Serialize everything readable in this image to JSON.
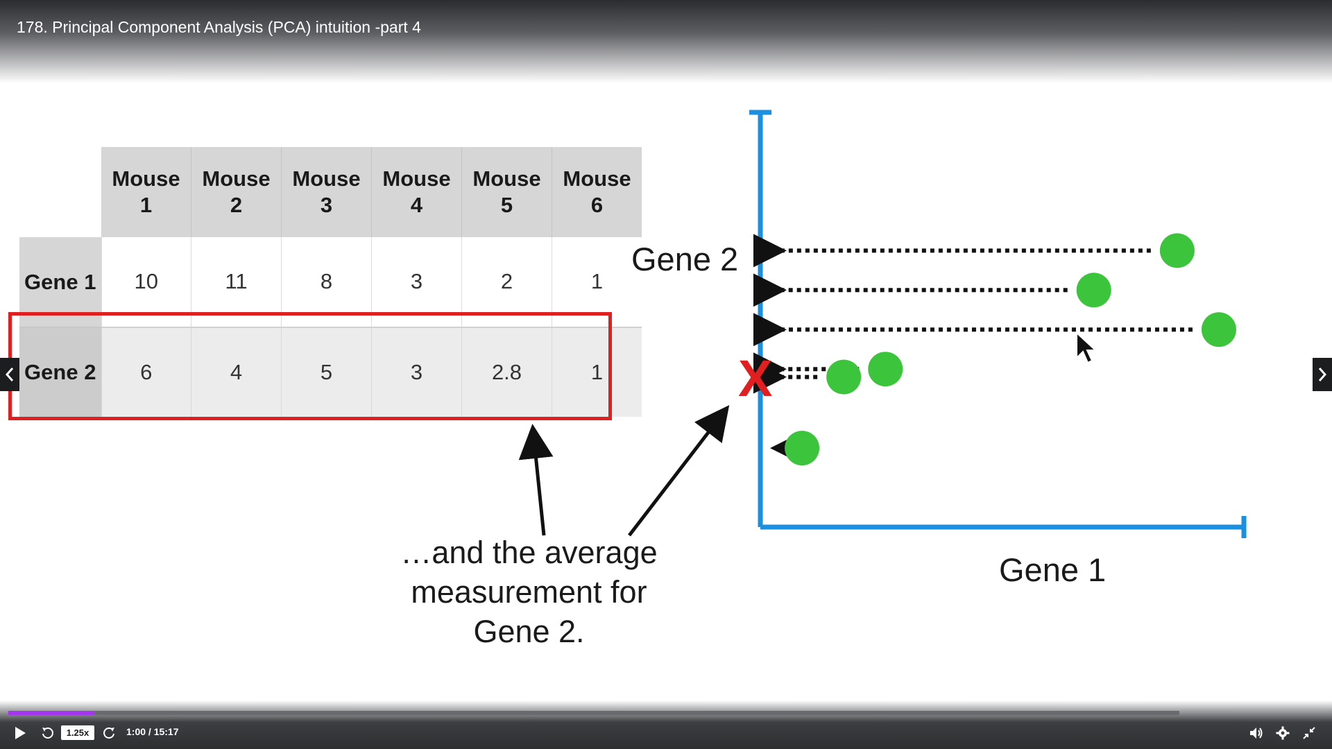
{
  "video": {
    "title": "178. Principal Component Analysis (PCA) intuition -part 4"
  },
  "table": {
    "columns": [
      "Mouse 1",
      "Mouse 2",
      "Mouse 3",
      "Mouse 4",
      "Mouse 5",
      "Mouse 6"
    ],
    "rows": [
      {
        "label": "Gene 1",
        "values": [
          "10",
          "11",
          "8",
          "3",
          "2",
          "1"
        ]
      },
      {
        "label": "Gene 2",
        "values": [
          "6",
          "4",
          "5",
          "3",
          "2.8",
          "1"
        ]
      }
    ]
  },
  "annotation": {
    "line1": "…and the average",
    "line2": "measurement for",
    "line3": "Gene 2."
  },
  "chart_data": {
    "type": "scatter",
    "xlabel": "Gene 1",
    "ylabel": "Gene 2",
    "x": [
      10,
      11,
      8,
      3,
      2,
      1
    ],
    "y": [
      6,
      4,
      5,
      3,
      2.8,
      1
    ],
    "xlim": [
      0,
      11.6
    ],
    "ylim": [
      -1,
      9.5
    ],
    "mean_y": 3.63,
    "mean_marker": "X",
    "point_color": "#3cc43c",
    "axis_color": "#1b8fe0",
    "marker_color": "#e02020"
  },
  "player": {
    "speed": "1.25x",
    "time": "1:00 / 15:17",
    "progress": 0.073,
    "accent": "#a435f0",
    "icons": [
      "play-icon",
      "rewind-icon",
      "forward-icon",
      "volume-icon",
      "settings-icon",
      "fullscreen-exit-icon",
      "chevron-left-icon",
      "chevron-right-icon"
    ]
  }
}
